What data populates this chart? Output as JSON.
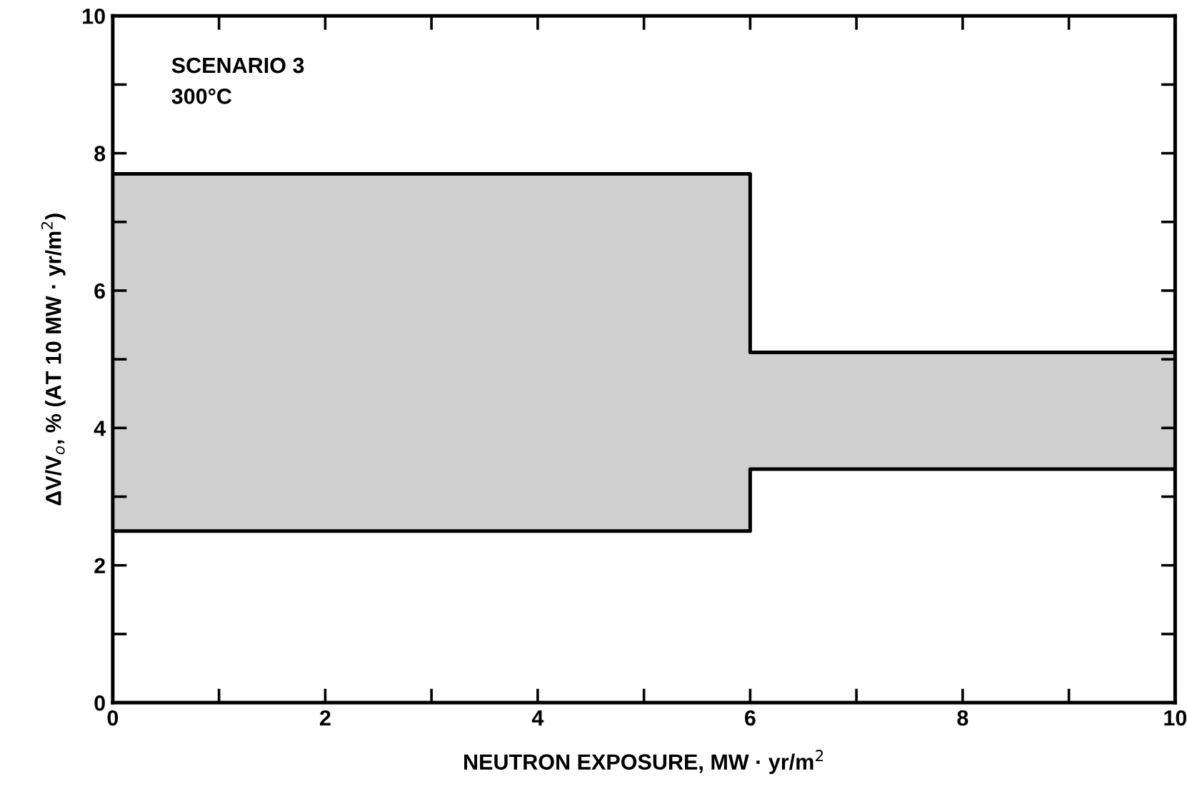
{
  "chart_data": {
    "type": "step",
    "xlabel": "NEUTRON EXPOSURE, MW · yr/m$^{2}$",
    "ylabel": "ΔV/V$_{o}$, % (AT 10 MW · yr/m$^{2}$)",
    "annotations": [
      "SCENARIO 3",
      "300°C"
    ],
    "series": [
      {
        "color": "#000000",
        "x": [
          0,
          6,
          10
        ],
        "values": [
          2.5,
          3.4,
          3.4
        ]
      },
      {
        "color": "#000000",
        "x": [
          0,
          6,
          10
        ],
        "values": [
          7.7,
          5.1,
          5.1
        ],
        "lower": [
          2.5,
          3.4,
          3.4
        ],
        "upper": [
          7.7,
          5.1,
          5.1
        ]
      }
    ],
    "xlim": [
      0,
      10
    ],
    "ylim": [
      0,
      10
    ],
    "xticks": [
      0,
      {
        "value": 1,
        "label": null
      },
      2,
      {
        "value": 3,
        "label": null
      },
      4,
      {
        "value": 5,
        "label": null
      },
      6,
      {
        "value": 7,
        "label": null
      },
      8,
      {
        "value": 9,
        "label": null
      },
      10
    ],
    "yticks": [
      0,
      {
        "value": 1,
        "label": null
      },
      2,
      {
        "value": 3,
        "label": null
      },
      4,
      {
        "value": 5,
        "label": null
      },
      6,
      {
        "value": 7,
        "label": null
      },
      8,
      {
        "value": 9,
        "label": null
      },
      10
    ],
    "grid": false,
    "legend": false
  }
}
